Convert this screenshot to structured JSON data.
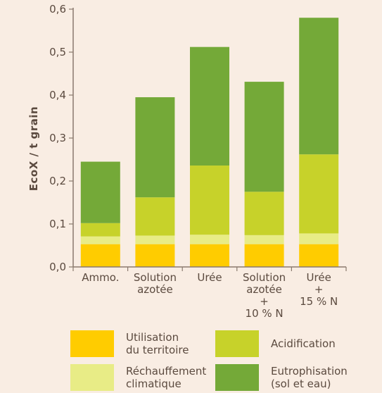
{
  "chart_data": {
    "type": "bar",
    "stacked": true,
    "ylabel": "EcoX / t grain",
    "xlabel": "",
    "ylim": [
      0,
      0.6
    ],
    "yticks": [
      "0,0",
      "0,1",
      "0,2",
      "0,3",
      "0,4",
      "0,5",
      "0,6"
    ],
    "grid": false,
    "legend_position": "bottom",
    "categories": [
      [
        "Ammo."
      ],
      [
        "Solution",
        "azotée"
      ],
      [
        "Urée"
      ],
      [
        "Solution",
        "azotée",
        "+",
        "10 % N"
      ],
      [
        "Urée",
        "+",
        "15 % N"
      ]
    ],
    "series": [
      {
        "name": [
          "Utilisation",
          "du territoire"
        ],
        "color": "#ffcc00",
        "values": [
          0.053,
          0.053,
          0.053,
          0.053,
          0.053
        ]
      },
      {
        "name": [
          "Réchauffement",
          "climatique"
        ],
        "color": "#e8ec86",
        "values": [
          0.018,
          0.02,
          0.022,
          0.021,
          0.025
        ]
      },
      {
        "name": [
          "Acidification"
        ],
        "color": "#c7d22a",
        "values": [
          0.031,
          0.089,
          0.161,
          0.101,
          0.184
        ]
      },
      {
        "name": [
          "Eutrophisation",
          "(sol et eau)"
        ],
        "color": "#74a938",
        "values": [
          0.143,
          0.233,
          0.276,
          0.256,
          0.318
        ]
      }
    ]
  }
}
